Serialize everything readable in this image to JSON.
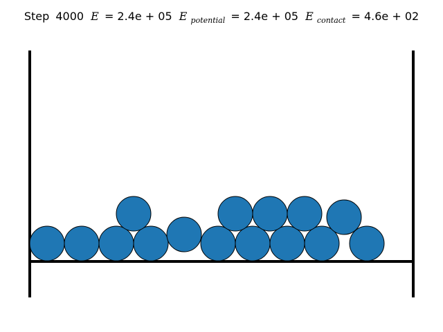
{
  "title": {
    "step_label": "Step",
    "step_value": "4000",
    "energy_symbol": "E",
    "energy_value": "= 2.4e + 05",
    "potential_symbol": "E",
    "potential_sub": "potential",
    "potential_value": "= 2.4e + 05",
    "contact_symbol": "E",
    "contact_sub": "contact",
    "contact_value": "= 4.6e + 02"
  },
  "colors": {
    "particle_fill": "#1f77b4",
    "particle_edge": "#000000",
    "wall": "#000000"
  },
  "particles": {
    "count": 15
  }
}
